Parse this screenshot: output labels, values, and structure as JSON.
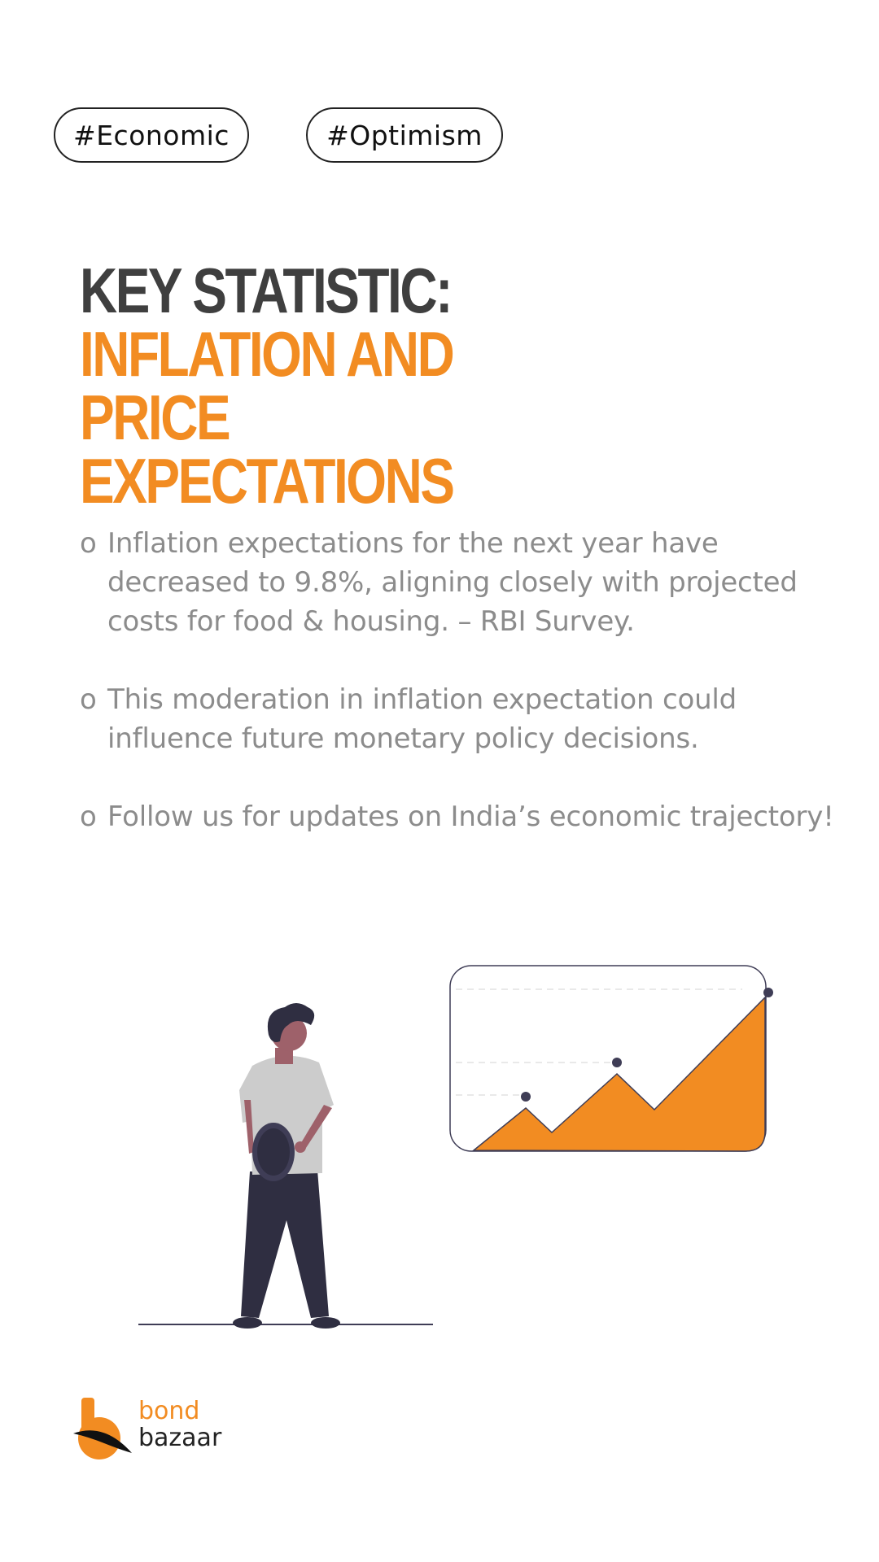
{
  "tags": [
    "#Economic",
    "#Optimism"
  ],
  "headline": {
    "line1": "KEY STATISTIC:",
    "line2": "INFLATION AND PRICE EXPECTATIONS"
  },
  "bullets": [
    "Inflation expectations for the next year have decreased to 9.8%, aligning closely with projected costs for food & housing. – RBI Survey.",
    "This moderation in inflation expectation could influence future monetary policy decisions.",
    "Follow us for updates on India’s economic trajectory!"
  ],
  "bullet_marker": "o",
  "brand": {
    "name_line1": "bond",
    "name_line2": "bazaar"
  },
  "colors": {
    "accent": "#f28c22",
    "heading_dark": "#3f3f3f",
    "body_text": "#8c8c8c",
    "figure_dark": "#2f2e41",
    "shirt": "#cccccc",
    "skin": "#9e616a"
  },
  "icons": {
    "illustration": "person-looking-at-rising-chart",
    "logo": "bondbazaar-logo-mark"
  }
}
